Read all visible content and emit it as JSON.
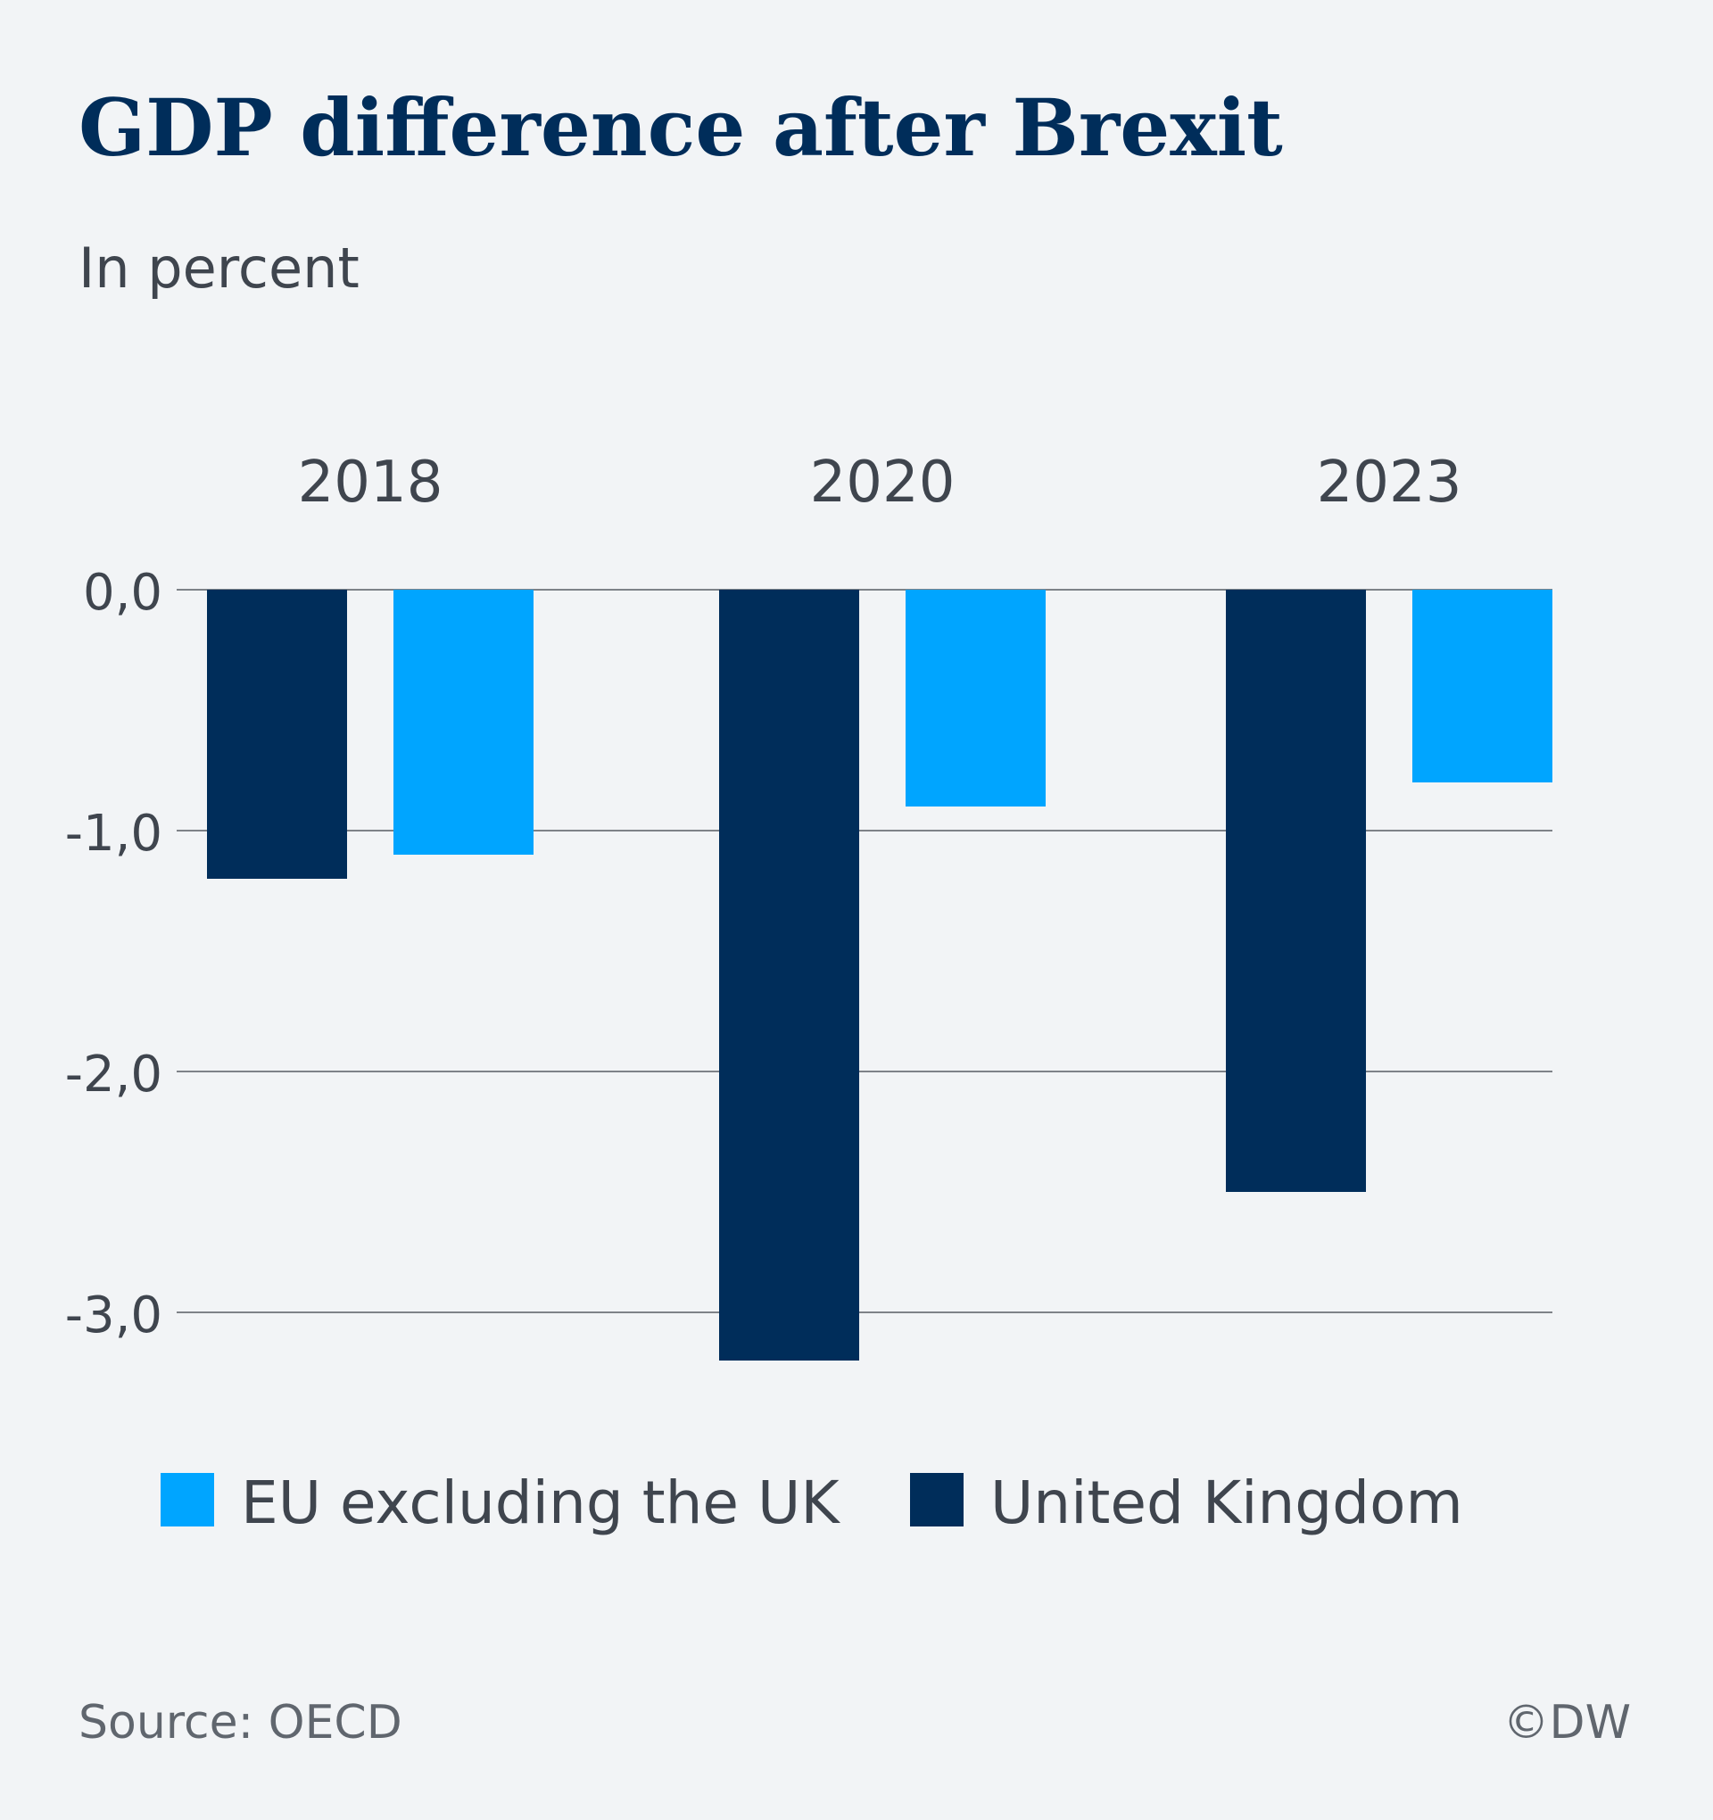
{
  "chart_data": {
    "type": "bar",
    "title": "GDP difference after Brexit",
    "subtitle": "In percent",
    "categories": [
      "2018",
      "2020",
      "2023"
    ],
    "series": [
      {
        "name": "United Kingdom",
        "color": "#002d5a",
        "values": [
          -1.2,
          -3.2,
          -2.5
        ]
      },
      {
        "name": "EU excluding the UK",
        "color": "#00a5ff",
        "values": [
          -1.1,
          -0.9,
          -0.8
        ]
      }
    ],
    "y_ticks": [
      0,
      -1,
      -2,
      -3
    ],
    "y_tick_labels": [
      "0,0",
      "-1,0",
      "-2,0",
      "-3,0"
    ],
    "ylim": [
      -3.3,
      0
    ],
    "grid": true,
    "legend_order": [
      "EU excluding the UK",
      "United Kingdom"
    ],
    "legend_position": "bottom",
    "category_labels_position": "top"
  },
  "footer": {
    "source": "Source: OECD",
    "credit": "©DW"
  }
}
